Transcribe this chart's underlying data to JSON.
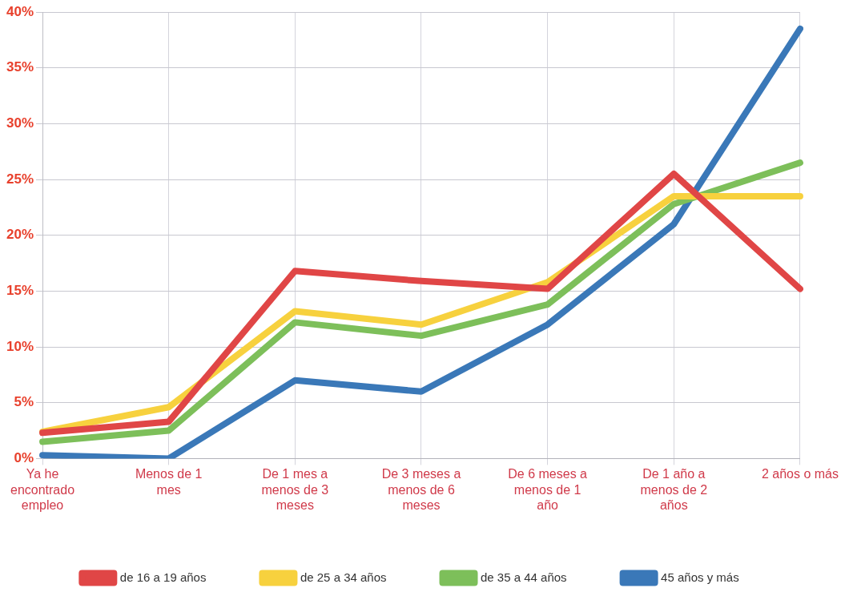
{
  "chart_data": {
    "type": "line",
    "categories": [
      "Ya he encontrado empleo",
      "Menos de 1 mes",
      "De 1 mes a menos de 3 meses",
      "De 3 meses a menos de 6 meses",
      "De 6 meses a menos de 1 año",
      "De 1 año a menos de 2 años",
      "2 años o más"
    ],
    "series": [
      {
        "name": "de 16 a 19 años",
        "color": "#e04646",
        "values": [
          2.3,
          3.3,
          16.8,
          15.9,
          15.2,
          25.5,
          15.2
        ]
      },
      {
        "name": "de 25 a 34 años",
        "color": "#f7d13e",
        "values": [
          2.4,
          4.6,
          13.2,
          12,
          15.8,
          23.5,
          23.5
        ]
      },
      {
        "name": "de 35 a 44 años",
        "color": "#7dbf5a",
        "values": [
          1.5,
          2.5,
          12.2,
          11,
          13.8,
          22.8,
          26.5
        ]
      },
      {
        "name": "45 años y más",
        "color": "#3a78b8",
        "values": [
          0.3,
          0,
          7,
          6,
          12,
          21,
          38.5
        ]
      }
    ],
    "ylim": [
      0,
      40
    ],
    "yticks": [
      {
        "value": 0,
        "label": "0%"
      },
      {
        "value": 5,
        "label": "5%"
      },
      {
        "value": 10,
        "label": "10%"
      },
      {
        "value": 15,
        "label": "15%"
      },
      {
        "value": 20,
        "label": "20%"
      },
      {
        "value": 25,
        "label": "25%"
      },
      {
        "value": 30,
        "label": "30%"
      },
      {
        "value": 35,
        "label": "35%"
      },
      {
        "value": 40,
        "label": "40%"
      }
    ],
    "grid": true,
    "legend": "bottom",
    "marker": "none",
    "line_style": "solid"
  }
}
